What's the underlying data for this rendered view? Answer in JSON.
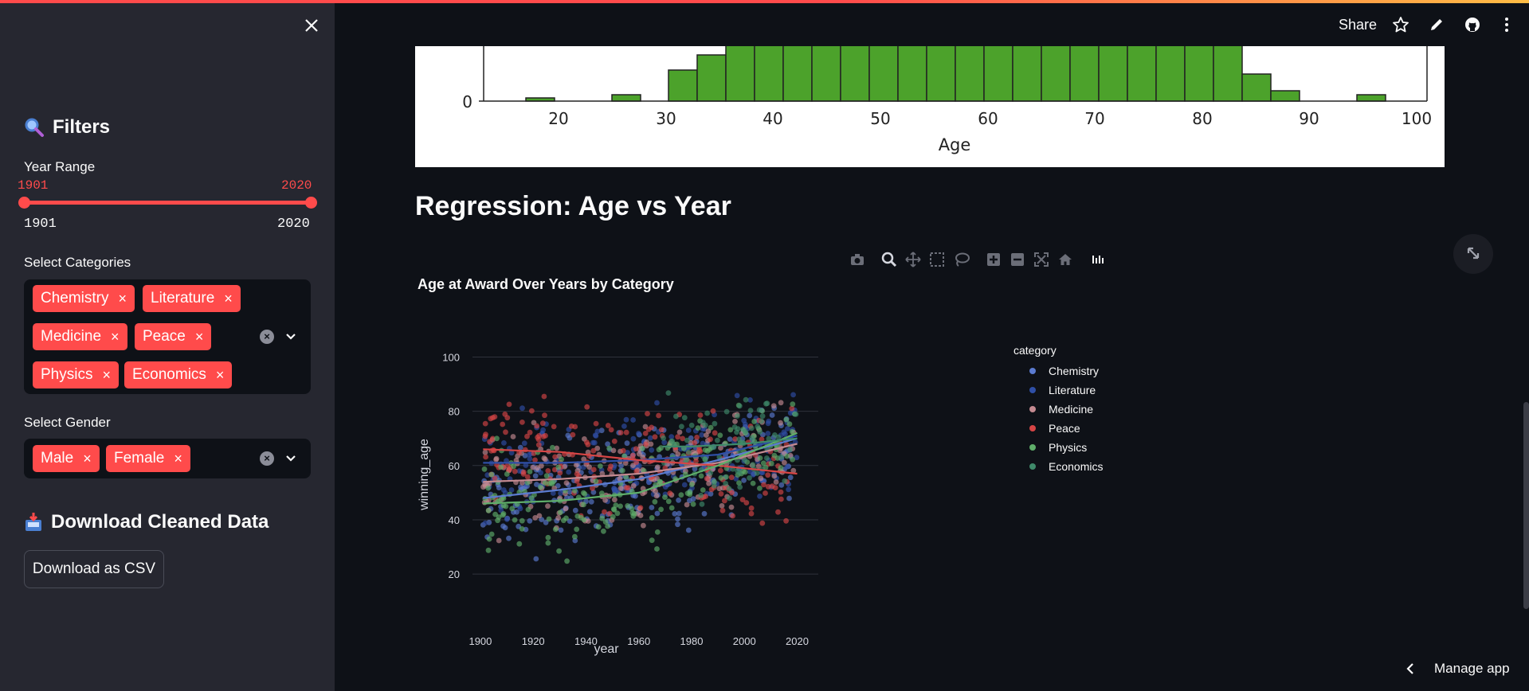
{
  "sidebar": {
    "filters_heading": "Filters",
    "year_range": {
      "label": "Year Range",
      "min_value": "1901",
      "max_value": "2020",
      "min_tick": "1901",
      "max_tick": "2020"
    },
    "categories": {
      "label": "Select Categories",
      "chips": [
        "Chemistry",
        "Literature",
        "Medicine",
        "Peace",
        "Physics",
        "Economics"
      ]
    },
    "gender": {
      "label": "Select Gender",
      "chips": [
        "Male",
        "Female"
      ]
    },
    "download_heading": "Download Cleaned Data",
    "download_button": "Download as CSV",
    "remove_glyph": "×"
  },
  "header": {
    "share_label": "Share",
    "icons": [
      "star-icon",
      "edit-icon",
      "github-icon",
      "more-icon"
    ]
  },
  "histogram": {
    "xlabel": "Age",
    "x_ticks": [
      "20",
      "30",
      "40",
      "50",
      "60",
      "70",
      "80",
      "90",
      "100"
    ],
    "y_tick": "0",
    "bar_color": "#4ca22b"
  },
  "section_title": "Regression: Age vs Year",
  "chart_data": {
    "type": "scatter",
    "title": "Age at Award Over Years by Category",
    "xlabel": "year",
    "ylabel": "winning_age",
    "xlim": [
      1897,
      2028
    ],
    "ylim": [
      8,
      106
    ],
    "x_ticks": [
      "1900",
      "1920",
      "1940",
      "1960",
      "1980",
      "2000",
      "2020"
    ],
    "y_ticks": [
      "20",
      "40",
      "60",
      "80",
      "100"
    ],
    "legend_title": "category",
    "legend_position": "right",
    "series": [
      {
        "name": "Chemistry",
        "color": "#5b7bd0",
        "trend": [
          [
            1901,
            48
          ],
          [
            1930,
            51
          ],
          [
            1960,
            55
          ],
          [
            1990,
            62
          ],
          [
            2020,
            70
          ]
        ]
      },
      {
        "name": "Literature",
        "color": "#2f4fa6",
        "trend": [
          [
            1901,
            61
          ],
          [
            1930,
            61
          ],
          [
            1960,
            62
          ],
          [
            1990,
            64
          ],
          [
            2020,
            71
          ]
        ]
      },
      {
        "name": "Medicine",
        "color": "#c48a91",
        "trend": [
          [
            1901,
            54
          ],
          [
            1930,
            55
          ],
          [
            1960,
            57
          ],
          [
            1990,
            61
          ],
          [
            2020,
            68
          ]
        ]
      },
      {
        "name": "Peace",
        "color": "#d64545",
        "trend": [
          [
            1901,
            66
          ],
          [
            1930,
            65
          ],
          [
            1960,
            62
          ],
          [
            1990,
            60
          ],
          [
            2020,
            57
          ]
        ]
      },
      {
        "name": "Physics",
        "color": "#5fae6a",
        "trend": [
          [
            1901,
            46
          ],
          [
            1930,
            47
          ],
          [
            1960,
            50
          ],
          [
            1990,
            60
          ],
          [
            2020,
            72
          ]
        ]
      },
      {
        "name": "Economics",
        "color": "#3f8a6a",
        "trend": [
          [
            1969,
            67
          ],
          [
            1980,
            67
          ],
          [
            2000,
            68
          ],
          [
            2020,
            70
          ]
        ]
      }
    ]
  },
  "footer": {
    "manage_label": "Manage app"
  },
  "colors": {
    "accent": "#ff4b4b",
    "sidebar_bg": "#262730",
    "main_bg": "#0e1117"
  }
}
